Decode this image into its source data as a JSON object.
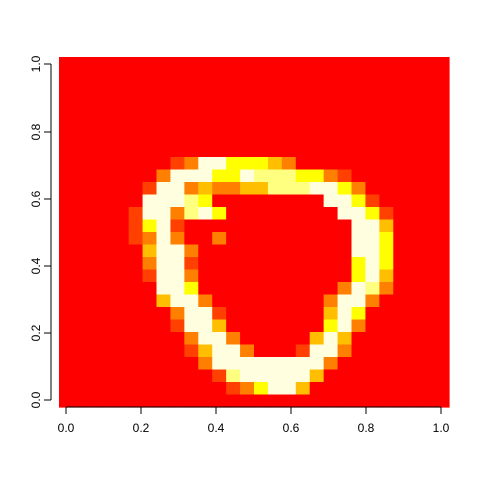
{
  "chart_data": {
    "type": "heatmap",
    "title": "",
    "xlabel": "",
    "ylabel": "",
    "xlim": [
      0,
      1
    ],
    "ylim": [
      0,
      1
    ],
    "x_ticks": [
      "0.0",
      "0.2",
      "0.4",
      "0.6",
      "0.8",
      "1.0"
    ],
    "y_ticks": [
      "0.0",
      "0.2",
      "0.4",
      "0.6",
      "0.8",
      "1.0"
    ],
    "grid": false,
    "legend": "none",
    "rows": 28,
    "cols": 28,
    "palette": [
      "#FF0000",
      "#FF4000",
      "#FF8000",
      "#FFBF00",
      "#FFFF00",
      "#FFFF80",
      "#FFFFE0"
    ],
    "row_runs": [
      {
        "row": 8,
        "runs": [
          [
            8,
            8,
            1
          ],
          [
            9,
            9,
            2
          ],
          [
            10,
            11,
            6
          ],
          [
            12,
            14,
            4
          ],
          [
            15,
            15,
            3
          ],
          [
            16,
            16,
            2
          ]
        ]
      },
      {
        "row": 9,
        "runs": [
          [
            7,
            7,
            2
          ],
          [
            8,
            8,
            6
          ],
          [
            9,
            10,
            6
          ],
          [
            11,
            12,
            4
          ],
          [
            13,
            13,
            6
          ],
          [
            14,
            16,
            5
          ],
          [
            17,
            18,
            4
          ],
          [
            19,
            19,
            2
          ],
          [
            20,
            20,
            1
          ]
        ]
      },
      {
        "row": 10,
        "runs": [
          [
            6,
            6,
            1
          ],
          [
            7,
            8,
            6
          ],
          [
            9,
            9,
            2
          ],
          [
            10,
            10,
            3
          ],
          [
            11,
            12,
            2
          ],
          [
            13,
            14,
            3
          ],
          [
            15,
            17,
            5
          ],
          [
            18,
            19,
            6
          ],
          [
            20,
            20,
            4
          ],
          [
            21,
            21,
            2
          ]
        ]
      },
      {
        "row": 11,
        "runs": [
          [
            6,
            8,
            6
          ],
          [
            9,
            9,
            5
          ],
          [
            10,
            10,
            4
          ],
          [
            19,
            20,
            6
          ],
          [
            21,
            21,
            4
          ],
          [
            22,
            22,
            1
          ]
        ]
      },
      {
        "row": 12,
        "runs": [
          [
            5,
            5,
            1
          ],
          [
            6,
            7,
            6
          ],
          [
            8,
            8,
            2
          ],
          [
            9,
            9,
            5
          ],
          [
            10,
            10,
            6
          ],
          [
            11,
            11,
            4
          ],
          [
            20,
            21,
            6
          ],
          [
            22,
            22,
            4
          ],
          [
            23,
            23,
            1
          ]
        ]
      },
      {
        "row": 13,
        "runs": [
          [
            5,
            5,
            1
          ],
          [
            6,
            6,
            4
          ],
          [
            7,
            7,
            6
          ],
          [
            8,
            8,
            1
          ],
          [
            21,
            22,
            6
          ],
          [
            23,
            23,
            3
          ]
        ]
      },
      {
        "row": 14,
        "runs": [
          [
            5,
            5,
            1
          ],
          [
            6,
            6,
            2
          ],
          [
            7,
            7,
            6
          ],
          [
            8,
            8,
            2
          ],
          [
            11,
            11,
            2
          ],
          [
            21,
            22,
            6
          ],
          [
            23,
            23,
            4
          ]
        ]
      },
      {
        "row": 15,
        "runs": [
          [
            6,
            6,
            3
          ],
          [
            7,
            8,
            6
          ],
          [
            9,
            9,
            2
          ],
          [
            21,
            22,
            6
          ],
          [
            23,
            23,
            4
          ]
        ]
      },
      {
        "row": 16,
        "runs": [
          [
            6,
            6,
            2
          ],
          [
            7,
            8,
            6
          ],
          [
            9,
            9,
            1
          ],
          [
            21,
            21,
            4
          ],
          [
            22,
            22,
            6
          ],
          [
            23,
            23,
            4
          ]
        ]
      },
      {
        "row": 17,
        "runs": [
          [
            6,
            6,
            1
          ],
          [
            7,
            8,
            6
          ],
          [
            9,
            9,
            2
          ],
          [
            21,
            21,
            4
          ],
          [
            22,
            22,
            6
          ],
          [
            23,
            23,
            3
          ]
        ]
      },
      {
        "row": 18,
        "runs": [
          [
            7,
            8,
            6
          ],
          [
            9,
            9,
            4
          ],
          [
            20,
            20,
            2
          ],
          [
            21,
            21,
            6
          ],
          [
            22,
            22,
            5
          ],
          [
            23,
            23,
            2
          ]
        ]
      },
      {
        "row": 19,
        "runs": [
          [
            7,
            7,
            3
          ],
          [
            8,
            9,
            6
          ],
          [
            10,
            10,
            2
          ],
          [
            19,
            19,
            2
          ],
          [
            20,
            21,
            6
          ],
          [
            22,
            22,
            2
          ]
        ]
      },
      {
        "row": 20,
        "runs": [
          [
            8,
            8,
            2
          ],
          [
            9,
            10,
            6
          ],
          [
            11,
            11,
            1
          ],
          [
            19,
            19,
            3
          ],
          [
            20,
            20,
            6
          ],
          [
            21,
            21,
            4
          ]
        ]
      },
      {
        "row": 21,
        "runs": [
          [
            8,
            8,
            1
          ],
          [
            9,
            10,
            6
          ],
          [
            11,
            11,
            3
          ],
          [
            19,
            19,
            4
          ],
          [
            20,
            20,
            6
          ],
          [
            21,
            21,
            2
          ]
        ]
      },
      {
        "row": 22,
        "runs": [
          [
            9,
            9,
            2
          ],
          [
            10,
            11,
            6
          ],
          [
            12,
            12,
            2
          ],
          [
            18,
            18,
            3
          ],
          [
            19,
            19,
            6
          ],
          [
            20,
            20,
            3
          ]
        ]
      },
      {
        "row": 23,
        "runs": [
          [
            9,
            9,
            1
          ],
          [
            10,
            10,
            3
          ],
          [
            11,
            12,
            6
          ],
          [
            13,
            13,
            2
          ],
          [
            17,
            17,
            1
          ],
          [
            18,
            19,
            6
          ],
          [
            20,
            20,
            2
          ]
        ]
      },
      {
        "row": 24,
        "runs": [
          [
            10,
            10,
            2
          ],
          [
            11,
            12,
            6
          ],
          [
            13,
            16,
            6
          ],
          [
            17,
            18,
            6
          ],
          [
            19,
            19,
            2
          ]
        ]
      },
      {
        "row": 25,
        "runs": [
          [
            11,
            11,
            1
          ],
          [
            12,
            12,
            5
          ],
          [
            13,
            17,
            6
          ],
          [
            18,
            18,
            3
          ]
        ]
      },
      {
        "row": 26,
        "runs": [
          [
            12,
            12,
            1
          ],
          [
            13,
            13,
            2
          ],
          [
            14,
            14,
            4
          ],
          [
            15,
            16,
            6
          ],
          [
            17,
            17,
            3
          ]
        ]
      }
    ]
  }
}
